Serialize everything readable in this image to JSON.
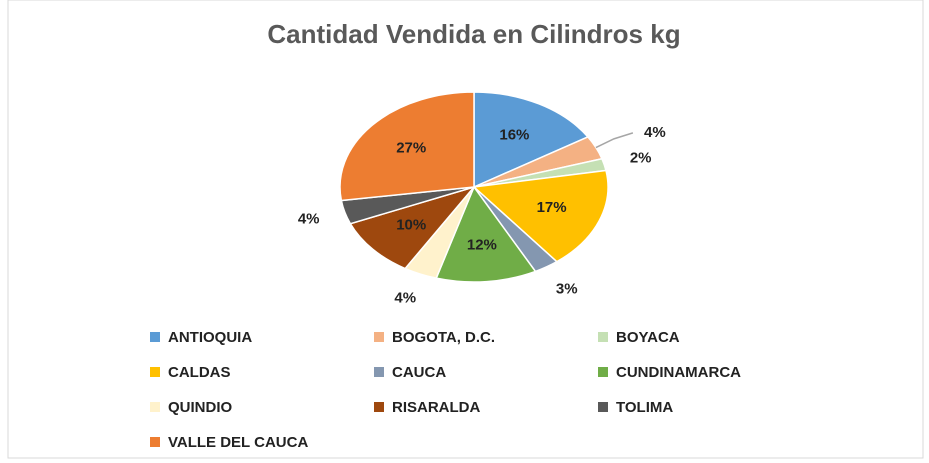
{
  "chart_data": {
    "type": "pie",
    "title": "Cantidad Vendida en Cilindros kg",
    "categories": [
      "ANTIOQUIA",
      "BOGOTA, D.C.",
      "BOYACA",
      "CALDAS",
      "CAUCA",
      "CUNDINAMARCA",
      "QUINDIO",
      "RISARALDA",
      "TOLIMA",
      "VALLE DEL CAUCA"
    ],
    "values": [
      16,
      4,
      2,
      17,
      3,
      12,
      4,
      10,
      4,
      27
    ],
    "value_labels": [
      "16%",
      "4%",
      "2%",
      "17%",
      "3%",
      "12%",
      "4%",
      "10%",
      "4%",
      "27%"
    ],
    "colors": [
      "#5b9bd5",
      "#f4b183",
      "#c5e0b4",
      "#ffc000",
      "#8497b0",
      "#70ad47",
      "#fff2cc",
      "#9e480e",
      "#595959",
      "#ed7d31"
    ],
    "legend": "bottom"
  }
}
